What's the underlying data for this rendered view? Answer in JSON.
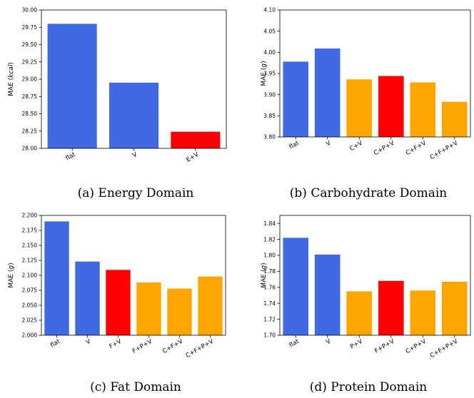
{
  "colors": {
    "base": "#4169E1",
    "highlight": "#FF0000",
    "other": "#FFA500"
  },
  "chart_data": [
    {
      "type": "bar",
      "categories": [
        "flat",
        "V",
        "E+V"
      ],
      "values": [
        29.8,
        28.95,
        28.24
      ],
      "colors": [
        "base",
        "base",
        "highlight"
      ],
      "ylim": [
        28.0,
        30.0
      ],
      "yticks": [
        "28.00",
        "28.25",
        "28.50",
        "28.75",
        "29.00",
        "29.25",
        "29.50",
        "29.75",
        "30.00"
      ],
      "ylabel_prefix": "MAE (",
      "ylabel_unit": "kcal",
      "ylabel_suffix": ")",
      "caption": "(a) Energy Domain"
    },
    {
      "type": "bar",
      "categories": [
        "flat",
        "V",
        "C+V",
        "C+P+V",
        "C+F+V",
        "C+F+P+V"
      ],
      "values": [
        3.978,
        4.009,
        3.936,
        3.944,
        3.929,
        3.883
      ],
      "colors": [
        "base",
        "base",
        "other",
        "highlight",
        "other",
        "other"
      ],
      "ylim": [
        3.8,
        4.1
      ],
      "yticks": [
        "3.80",
        "3.85",
        "3.90",
        "3.95",
        "4.00",
        "4.05",
        "4.10"
      ],
      "ylabel_prefix": "MAE (",
      "ylabel_unit": "g",
      "ylabel_suffix": ")",
      "caption": "(b) Carbohydrate Domain"
    },
    {
      "type": "bar",
      "categories": [
        "flat",
        "V",
        "F+V",
        "F+P+V",
        "C+F+V",
        "C+F+P+V"
      ],
      "values": [
        2.19,
        2.123,
        2.109,
        2.088,
        2.078,
        2.098
      ],
      "colors": [
        "base",
        "base",
        "highlight",
        "other",
        "other",
        "other"
      ],
      "ylim": [
        2.0,
        2.2
      ],
      "yticks": [
        "2.000",
        "2.025",
        "2.050",
        "2.075",
        "2.100",
        "2.125",
        "2.150",
        "2.175",
        "2.200"
      ],
      "ylabel_prefix": "MAE (",
      "ylabel_unit": "g",
      "ylabel_suffix": ")",
      "caption": "(c) Fat Domain"
    },
    {
      "type": "bar",
      "categories": [
        "flat",
        "V",
        "P+V",
        "F+P+V",
        "C+P+V",
        "C+F+P+V"
      ],
      "values": [
        1.822,
        1.801,
        1.755,
        1.768,
        1.756,
        1.767
      ],
      "colors": [
        "base",
        "base",
        "other",
        "highlight",
        "other",
        "other"
      ],
      "ylim": [
        1.7,
        1.85
      ],
      "yticks": [
        "1.70",
        "1.72",
        "1.74",
        "1.76",
        "1.78",
        "1.80",
        "1.82",
        "1.84"
      ],
      "ylabel_prefix": "MAE (",
      "ylabel_unit": "g",
      "ylabel_suffix": ")",
      "caption": "(d) Protein Domain"
    }
  ]
}
